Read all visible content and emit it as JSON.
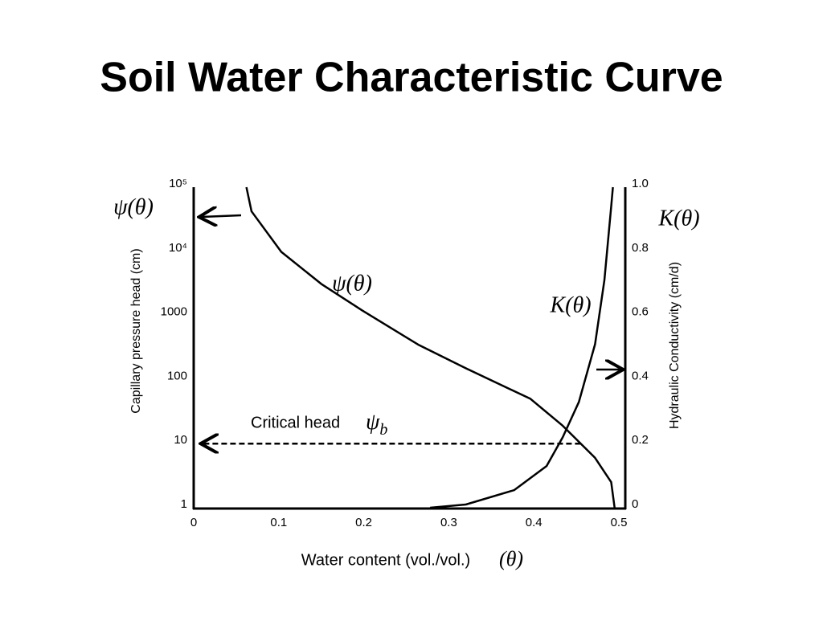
{
  "chart_data": {
    "type": "line",
    "title": "Soil Water Characteristic Curve",
    "x_label": "Water content (vol./vol.)",
    "x_symbol": "(θ)",
    "y_label": "Capillary pressure head (cm)",
    "y2_label": "Hydraulic Conductivity (cm/d)",
    "y_scale": "log",
    "grid": false,
    "xlim": [
      0,
      0.5
    ],
    "xticks": [
      0,
      0.1,
      0.2,
      0.3,
      0.4,
      0.5
    ],
    "ylim": [
      1,
      100000
    ],
    "yticks": [
      1,
      10,
      100,
      1000,
      {
        "value": 10000,
        "label": "10⁴"
      },
      {
        "value": 100000,
        "label": "10⁵"
      }
    ],
    "y2lim": [
      0,
      1
    ],
    "y2ticks": [
      0,
      0.2,
      0.4,
      0.6,
      0.8,
      {
        "value": 1,
        "label": "1.0"
      }
    ],
    "series": [
      {
        "name": "ψ(θ)",
        "color": "#000000",
        "x": [
          0.062,
          0.068,
          0.103,
          0.15,
          0.198,
          0.264,
          0.32,
          0.396,
          0.434,
          0.472,
          0.491,
          0.495
        ],
        "values": [
          100000,
          42000,
          9800,
          3100,
          1200,
          350,
          150,
          50,
          19,
          6,
          2.5,
          1
        ]
      },
      {
        "name": "K(θ)",
        "color": "#000000",
        "axis": "y2",
        "x": [
          0.278,
          0.32,
          0.377,
          0.415,
          0.434,
          0.453,
          0.472,
          0.483,
          0.491,
          0.493
        ],
        "values": [
          0,
          0.01,
          0.055,
          0.13,
          0.22,
          0.33,
          0.51,
          0.71,
          0.94,
          1
        ]
      }
    ],
    "critical_head": {
      "label": "Critical head",
      "symbol": "ψ",
      "subscript": "b",
      "value": 10,
      "x_end": 0.455
    },
    "annotations": [
      "ψ(θ)",
      "K(θ)"
    ]
  }
}
